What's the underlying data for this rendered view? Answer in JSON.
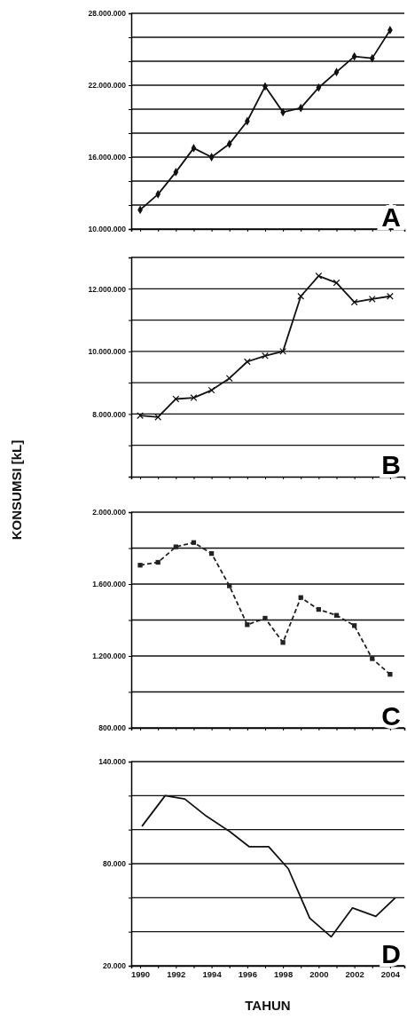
{
  "chart_data": [
    {
      "type": "line",
      "xlim": [
        1989.5,
        2004.8
      ],
      "xticks": [
        1990,
        {
          "value": 1991,
          "label": null
        },
        1992,
        {
          "value": 1993,
          "label": null
        },
        1994,
        {
          "value": 1995,
          "label": null
        },
        1996,
        {
          "value": 1997,
          "label": null
        },
        1998,
        {
          "value": 1999,
          "label": null
        },
        2000,
        {
          "value": 2001,
          "label": null
        },
        2002,
        {
          "value": 2003,
          "label": null
        },
        2004
      ],
      "ylim": [
        10000000,
        28000000
      ],
      "yticks": [
        {
          "value": 10000000,
          "label": "10.000.000"
        },
        {
          "value": 12000000,
          "label": null
        },
        {
          "value": 14000000,
          "label": null
        },
        {
          "value": 16000000,
          "label": "16.000.000"
        },
        {
          "value": 18000000,
          "label": null
        },
        {
          "value": 20000000,
          "label": null
        },
        {
          "value": 22000000,
          "label": "22.000.000"
        },
        {
          "value": 24000000,
          "label": null
        },
        {
          "value": 26000000,
          "label": null
        },
        {
          "value": 28000000,
          "label": "28.000.000"
        }
      ],
      "x": [
        1990,
        1991,
        1992,
        1993,
        1994,
        1995,
        1996,
        1997,
        1998,
        1999,
        2000,
        2001,
        2002,
        2003,
        2004
      ],
      "series": [
        {
          "color": "#111111",
          "values": [
            11600000,
            12900000,
            14750000,
            16750000,
            16000000,
            17100000,
            19000000,
            21900000,
            19750000,
            20100000,
            21800000,
            23100000,
            24400000,
            24250000,
            26600000
          ]
        }
      ],
      "marker": "diamond",
      "grid": "y",
      "tick_labels": "y",
      "annotations": [
        "A"
      ]
    },
    {
      "type": "line",
      "xlim": [
        1989.5,
        2004.8
      ],
      "xticks": [
        1990,
        {
          "value": 1991,
          "label": null
        },
        1992,
        {
          "value": 1993,
          "label": null
        },
        1994,
        {
          "value": 1995,
          "label": null
        },
        1996,
        {
          "value": 1997,
          "label": null
        },
        1998,
        {
          "value": 1999,
          "label": null
        },
        2000,
        {
          "value": 2001,
          "label": null
        },
        2002,
        {
          "value": 2003,
          "label": null
        },
        2004
      ],
      "ylim": [
        6000000,
        13000000
      ],
      "yticks": [
        {
          "value": 7000000,
          "label": null
        },
        {
          "value": 8000000,
          "label": "8.000.000"
        },
        {
          "value": 9000000,
          "label": null
        },
        {
          "value": 10000000,
          "label": "10.000.000"
        },
        {
          "value": 11000000,
          "label": null
        },
        {
          "value": 12000000,
          "label": "12.000.000"
        },
        {
          "value": 13000000,
          "label": null
        }
      ],
      "x": [
        1990,
        1991,
        1992,
        1993,
        1994,
        1995,
        1996,
        1997,
        1998,
        1999,
        2000,
        2001,
        2002,
        2003,
        2004
      ],
      "series": [
        {
          "color": "#111111",
          "values": [
            7950000,
            7900000,
            8480000,
            8520000,
            8760000,
            9140000,
            9670000,
            9860000,
            10000000,
            11760000,
            12410000,
            12190000,
            11570000,
            11670000,
            11760000
          ]
        }
      ],
      "marker": "cross",
      "grid": "y",
      "tick_labels": "y",
      "ylabel": "KONSUMSI [kL]",
      "annotations": [
        "B"
      ]
    },
    {
      "type": "line",
      "xlim": [
        1989.5,
        2004.8
      ],
      "xticks": [
        1990,
        {
          "value": 1991,
          "label": null
        },
        1992,
        {
          "value": 1993,
          "label": null
        },
        1994,
        {
          "value": 1995,
          "label": null
        },
        1996,
        {
          "value": 1997,
          "label": null
        },
        1998,
        {
          "value": 1999,
          "label": null
        },
        2000,
        {
          "value": 2001,
          "label": null
        },
        2002,
        {
          "value": 2003,
          "label": null
        },
        2004
      ],
      "ylim": [
        800000,
        2000000
      ],
      "yticks": [
        {
          "value": 800000,
          "label": "800.000"
        },
        {
          "value": 1000000,
          "label": null
        },
        {
          "value": 1200000,
          "label": "1.200.000"
        },
        {
          "value": 1400000,
          "label": null
        },
        {
          "value": 1600000,
          "label": "1.600.000"
        },
        {
          "value": 1800000,
          "label": null
        },
        {
          "value": 2000000,
          "label": "2.000.000"
        }
      ],
      "x": [
        1990,
        1991,
        1992,
        1993,
        1994,
        1995,
        1996,
        1997,
        1998,
        1999,
        2000,
        2001,
        2002,
        2003,
        2004
      ],
      "series": [
        {
          "color": "#222222",
          "values": [
            1705000,
            1721000,
            1807000,
            1831000,
            1770000,
            1590000,
            1374000,
            1410000,
            1275000,
            1525000,
            1459000,
            1426000,
            1369000,
            1185000,
            1098000
          ]
        }
      ],
      "marker": "square",
      "line_style": "dashed",
      "grid": "y",
      "tick_labels": "y",
      "annotations": [
        "C"
      ]
    },
    {
      "type": "line",
      "xlim": [
        1989.5,
        2004.8
      ],
      "xticks": [
        1990,
        {
          "value": 1991,
          "label": null
        },
        1992,
        {
          "value": 1993,
          "label": null
        },
        1994,
        {
          "value": 1995,
          "label": null
        },
        1996,
        {
          "value": 1997,
          "label": null
        },
        1998,
        {
          "value": 1999,
          "label": null
        },
        2000,
        {
          "value": 2001,
          "label": null
        },
        2002,
        {
          "value": 2003,
          "label": null
        },
        2004
      ],
      "ylim": [
        20000,
        140000
      ],
      "yticks": [
        {
          "value": 20000,
          "label": "20.000"
        },
        {
          "value": 40000,
          "label": null
        },
        {
          "value": 60000,
          "label": null
        },
        {
          "value": 80000,
          "label": "80.000"
        },
        {
          "value": 100000,
          "label": null
        },
        {
          "value": 120000,
          "label": null
        },
        {
          "value": 140000,
          "label": "140.000"
        }
      ],
      "x": [
        1990.1,
        1991.4,
        1992.5,
        1993.7,
        1995.0,
        1996.1,
        1997.2,
        1998.3,
        1999.5,
        2000.7,
        2001.9,
        2003.2,
        2004.3
      ],
      "series": [
        {
          "color": "#111111",
          "values": [
            102000,
            120000,
            118000,
            108000,
            99000,
            90000,
            90000,
            77000,
            48000,
            37000,
            54000,
            49000,
            60000
          ]
        }
      ],
      "grid": "y",
      "xlabel": "TAHUN",
      "annotations": [
        "D"
      ]
    }
  ]
}
